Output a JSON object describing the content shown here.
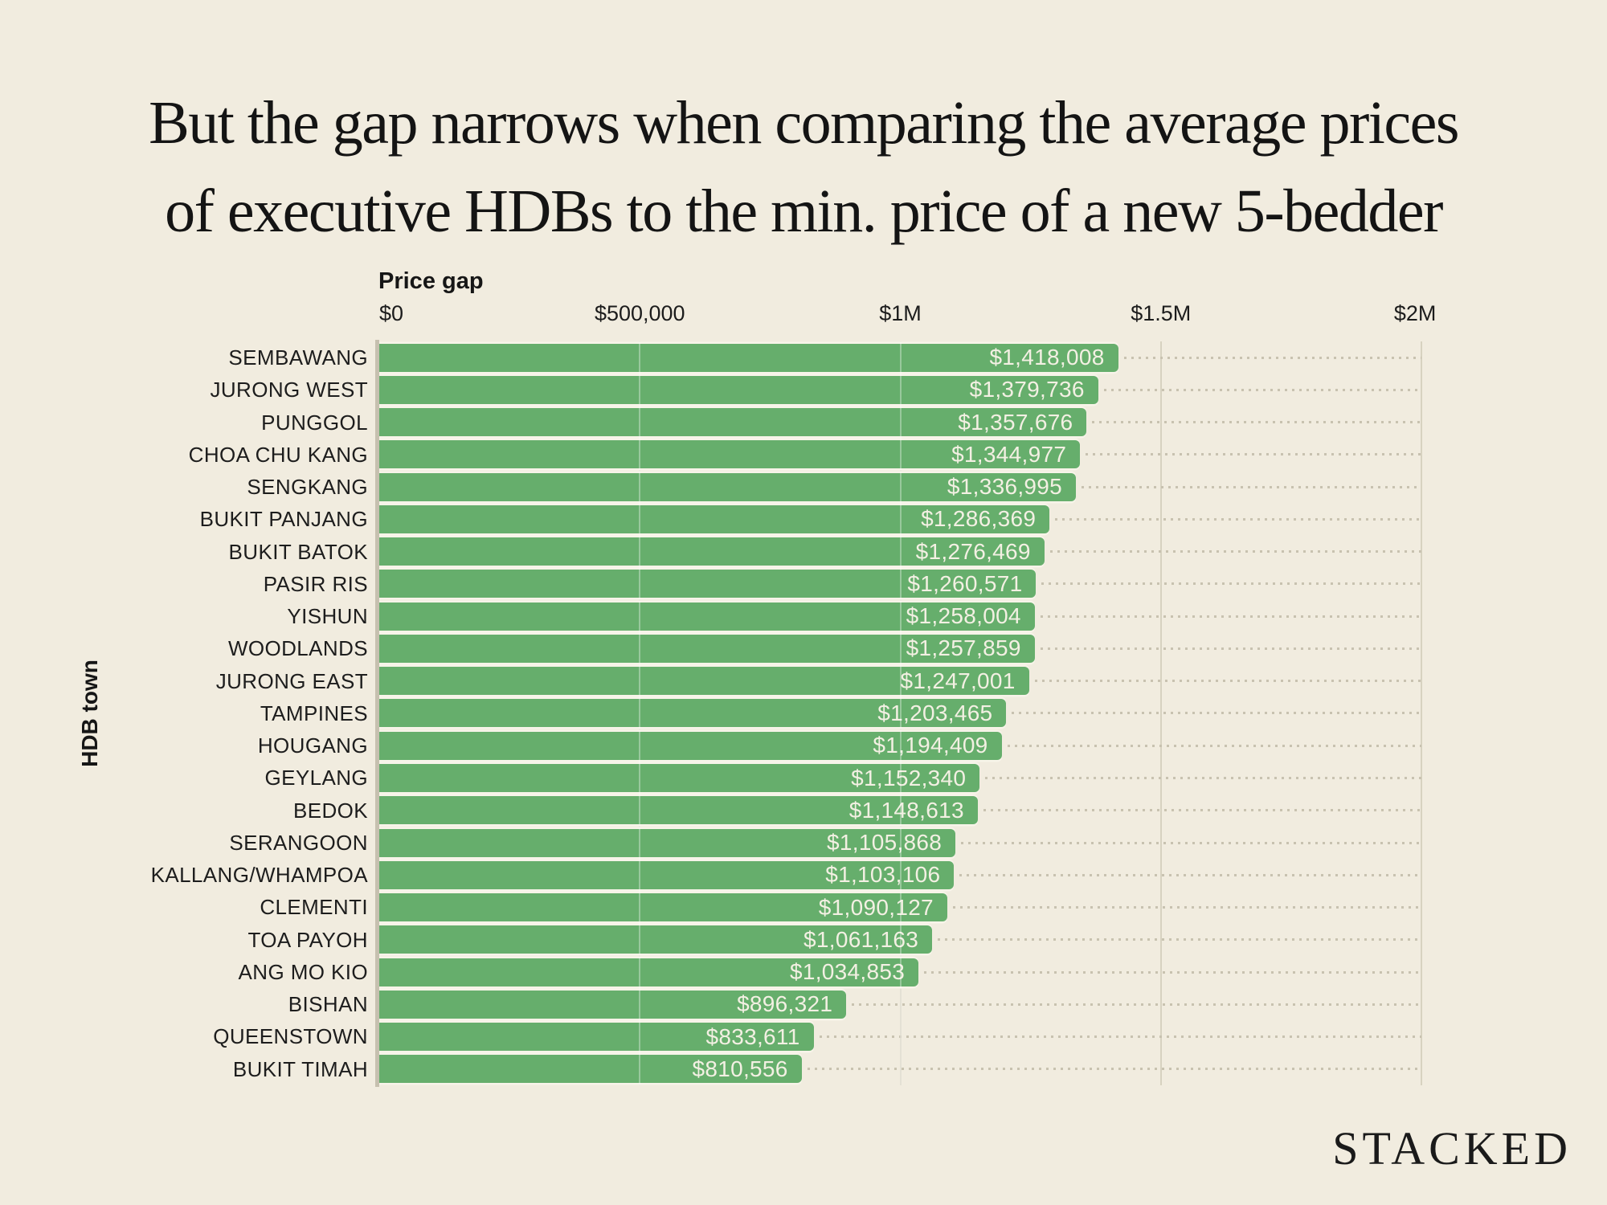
{
  "page": {
    "background_color": "#f1ecdf"
  },
  "header": {
    "title_line1": "But the gap narrows when comparing the average prices",
    "title_line2": "of executive HDBs to the min. price of a new 5-bedder"
  },
  "branding": {
    "logo": "STACKED"
  },
  "chart_data": {
    "type": "bar",
    "orientation": "horizontal",
    "title": "But the gap narrows when comparing the average prices of executive HDBs to the min. price of a new 5-bedder",
    "xlabel": "Price gap",
    "ylabel": "HDB town",
    "xlim": [
      0,
      2000000
    ],
    "grid": "solid vertical gridlines at ticks; dotted horizontal leader from each bar end to right edge",
    "x_ticks": [
      {
        "label": "$0",
        "value": 0
      },
      {
        "label": "$500,000",
        "value": 500000
      },
      {
        "label": "$1M",
        "value": 1000000
      },
      {
        "label": "$1.5M",
        "value": 1500000
      },
      {
        "label": "$2M",
        "value": 2000000
      }
    ],
    "categories": [
      "SEMBAWANG",
      "JURONG WEST",
      "PUNGGOL",
      "CHOA CHU KANG",
      "SENGKANG",
      "BUKIT PANJANG",
      "BUKIT BATOK",
      "PASIR RIS",
      "YISHUN",
      "WOODLANDS",
      "JURONG EAST",
      "TAMPINES",
      "HOUGANG",
      "GEYLANG",
      "BEDOK",
      "SERANGOON",
      "KALLANG/WHAMPOA",
      "CLEMENTI",
      "TOA PAYOH",
      "ANG MO KIO",
      "BISHAN",
      "QUEENSTOWN",
      "BUKIT TIMAH"
    ],
    "values": [
      1418008,
      1379736,
      1357676,
      1344977,
      1336995,
      1286369,
      1276469,
      1260571,
      1258004,
      1257859,
      1247001,
      1203465,
      1194409,
      1152340,
      1148613,
      1105868,
      1103106,
      1090127,
      1061163,
      1034853,
      896321,
      833611,
      810556
    ],
    "value_labels": [
      "$1,418,008",
      "$1,379,736",
      "$1,357,676",
      "$1,344,977",
      "$1,336,995",
      "$1,286,369",
      "$1,276,469",
      "$1,260,571",
      "$1,258,004",
      "$1,257,859",
      "$1,247,001",
      "$1,203,465",
      "$1,194,409",
      "$1,152,340",
      "$1,148,613",
      "$1,105,868",
      "$1,103,106",
      "$1,090,127",
      "$1,061,163",
      "$1,034,853",
      "$896,321",
      "$833,611",
      "$810,556"
    ],
    "colors": {
      "bar": "#66ae6c",
      "value_text": "#f3f0e3",
      "label_text": "#1d1d1d",
      "gridline": "#d7d2c0",
      "axis_line": "#c6c0af",
      "leader_dots": "#c8c2b0",
      "bar_separator": "#f7f4e9",
      "background": "#f1ecdf"
    }
  }
}
